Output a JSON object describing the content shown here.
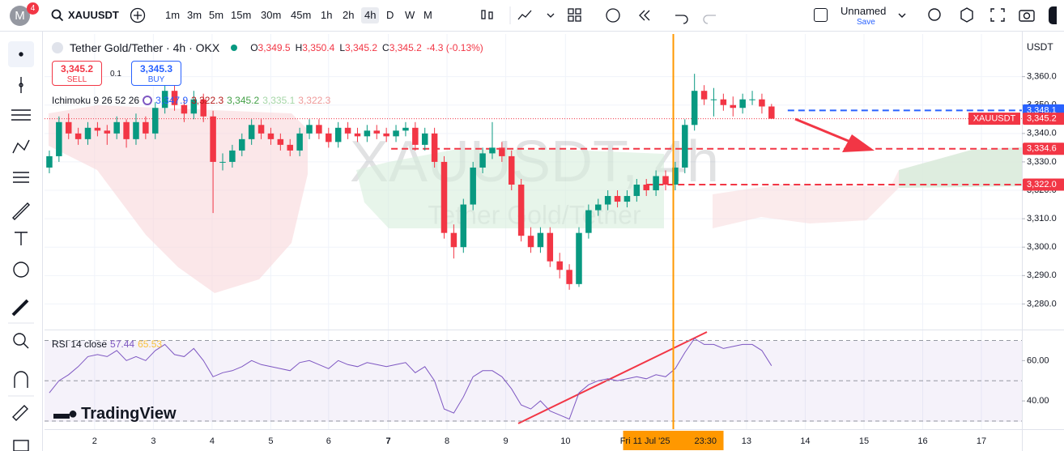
{
  "toolbar": {
    "avatar": "M",
    "badge": "4",
    "symbol": "XAUUSDT",
    "intervals": [
      "1m",
      "3m",
      "5m",
      "15m",
      "30m",
      "45m",
      "1h",
      "2h",
      "4h",
      "D",
      "W",
      "M"
    ],
    "active_interval": "4h",
    "layout_name": "Unnamed",
    "save": "Save"
  },
  "trade": {
    "sell_price": "3,345.2",
    "sell": "SELL",
    "quantity": "0.1",
    "buy_price": "3,345.3",
    "buy": "BUY"
  },
  "branding": "TradingView",
  "chart_data": {
    "type": "candlestick",
    "title": "Tether Gold/Tether · 4h · OKX",
    "ohlc_legend": [
      {
        "label": "O",
        "value": "3,349.5"
      },
      {
        "label": "H",
        "value": "3,350.4"
      },
      {
        "label": "L",
        "value": "3,345.2"
      },
      {
        "label": "C",
        "value": "3,345.2"
      }
    ],
    "change": "-4.3 (-0.13%)",
    "watermark": "XAUUSDT, 4h",
    "watermark_subtitle": "Tether Gold/Tether",
    "currency": "USDT",
    "up_color": "#089981",
    "down_color": "#f23645",
    "indicator": {
      "name": "Ichimoku 9 26 52 26",
      "values": [
        {
          "value": "3,347.9",
          "color": "#2962ff"
        },
        {
          "value": "3,322.3",
          "color": "#b71c1c"
        },
        {
          "value": "3,345.2",
          "color": "#43a047"
        },
        {
          "value": "3,335.1",
          "color": "#a5d6a7"
        },
        {
          "value": "3,322.3",
          "color": "#ef9a9a"
        }
      ]
    },
    "candles": [
      [
        3328,
        3334,
        3326,
        3332
      ],
      [
        3332,
        3346,
        3330,
        3344
      ],
      [
        3344,
        3347,
        3338,
        3340
      ],
      [
        3340,
        3342,
        3336,
        3338
      ],
      [
        3338,
        3344,
        3336,
        3342
      ],
      [
        3342,
        3344,
        3339,
        3341
      ],
      [
        3341,
        3343,
        3336,
        3340
      ],
      [
        3340,
        3346,
        3338,
        3344
      ],
      [
        3344,
        3345,
        3335,
        3338
      ],
      [
        3338,
        3347,
        3336,
        3344
      ],
      [
        3344,
        3346,
        3338,
        3340
      ],
      [
        3340,
        3351,
        3338,
        3349
      ],
      [
        3349,
        3360,
        3347,
        3355
      ],
      [
        3355,
        3357,
        3348,
        3350
      ],
      [
        3350,
        3352,
        3344,
        3347
      ],
      [
        3347,
        3355,
        3345,
        3352
      ],
      [
        3352,
        3354,
        3344,
        3346
      ],
      [
        3346,
        3348,
        3312,
        3330
      ],
      [
        3330,
        3333,
        3327,
        3330
      ],
      [
        3330,
        3336,
        3328,
        3334
      ],
      [
        3334,
        3340,
        3332,
        3338
      ],
      [
        3338,
        3345,
        3336,
        3343
      ],
      [
        3343,
        3345,
        3338,
        3340
      ],
      [
        3340,
        3342,
        3336,
        3338
      ],
      [
        3338,
        3340,
        3334,
        3336
      ],
      [
        3336,
        3338,
        3332,
        3334
      ],
      [
        3334,
        3342,
        3332,
        3340
      ],
      [
        3340,
        3345,
        3338,
        3343
      ],
      [
        3343,
        3345,
        3338,
        3340
      ],
      [
        3340,
        3342,
        3335,
        3337
      ],
      [
        3337,
        3344,
        3335,
        3342
      ],
      [
        3342,
        3344,
        3338,
        3340
      ],
      [
        3340,
        3342,
        3337,
        3339
      ],
      [
        3339,
        3343,
        3337,
        3341
      ],
      [
        3341,
        3343,
        3338,
        3340
      ],
      [
        3340,
        3342,
        3337,
        3339
      ],
      [
        3339,
        3343,
        3337,
        3341
      ],
      [
        3341,
        3344,
        3339,
        3342
      ],
      [
        3342,
        3344,
        3334,
        3336
      ],
      [
        3336,
        3342,
        3334,
        3340
      ],
      [
        3340,
        3342,
        3328,
        3330
      ],
      [
        3330,
        3332,
        3303,
        3305
      ],
      [
        3305,
        3308,
        3296,
        3300
      ],
      [
        3300,
        3317,
        3298,
        3315
      ],
      [
        3315,
        3330,
        3313,
        3328
      ],
      [
        3328,
        3335,
        3326,
        3333
      ],
      [
        3333,
        3344,
        3331,
        3335
      ],
      [
        3335,
        3337,
        3330,
        3332
      ],
      [
        3332,
        3334,
        3320,
        3322
      ],
      [
        3322,
        3324,
        3302,
        3304
      ],
      [
        3304,
        3307,
        3298,
        3300
      ],
      [
        3300,
        3307,
        3298,
        3305
      ],
      [
        3305,
        3307,
        3293,
        3295
      ],
      [
        3295,
        3298,
        3289,
        3292
      ],
      [
        3292,
        3294,
        3285,
        3287
      ],
      [
        3287,
        3307,
        3286,
        3305
      ],
      [
        3305,
        3315,
        3303,
        3313
      ],
      [
        3313,
        3317,
        3311,
        3315
      ],
      [
        3315,
        3320,
        3313,
        3318
      ],
      [
        3318,
        3320,
        3314,
        3316
      ],
      [
        3316,
        3320,
        3314,
        3318
      ],
      [
        3318,
        3324,
        3316,
        3322
      ],
      [
        3322,
        3324,
        3318,
        3320
      ],
      [
        3320,
        3327,
        3318,
        3325
      ],
      [
        3325,
        3327,
        3320,
        3322
      ],
      [
        3322,
        3330,
        3320,
        3328
      ],
      [
        3328,
        3345,
        3326,
        3343
      ],
      [
        3343,
        3361,
        3341,
        3355
      ],
      [
        3355,
        3357,
        3350,
        3352
      ],
      [
        3352,
        3356,
        3346,
        3352
      ],
      [
        3352,
        3354,
        3348,
        3350
      ],
      [
        3350,
        3353,
        3346,
        3349
      ],
      [
        3349,
        3354,
        3347,
        3352
      ],
      [
        3352,
        3355,
        3350,
        3352
      ],
      [
        3352,
        3354,
        3347,
        3349.5
      ],
      [
        3349.5,
        3350.4,
        3345.2,
        3345.2
      ]
    ],
    "xlim": [
      -0.5,
      101
    ],
    "xticks": [
      {
        "value": 4.7,
        "label": "2"
      },
      {
        "value": 10.8,
        "label": "3"
      },
      {
        "value": 16.9,
        "label": "4"
      },
      {
        "value": 23,
        "label": "5"
      },
      {
        "value": 29,
        "label": "6"
      },
      {
        "value": 35.2,
        "label": "7"
      },
      {
        "value": 41.3,
        "label": "8"
      },
      {
        "value": 47.4,
        "label": "9"
      },
      {
        "value": 53.6,
        "label": "10"
      },
      {
        "value": 72.4,
        "label": "13"
      },
      {
        "value": 78.5,
        "label": "14"
      },
      {
        "value": 84.6,
        "label": "15"
      },
      {
        "value": 90.7,
        "label": "16"
      },
      {
        "value": 96.8,
        "label": "17"
      }
    ],
    "crosshair": {
      "value": 64.8,
      "label": "Fri 11 Jul '25",
      "time": "23:30",
      "color": "#ff9800"
    },
    "ylim": [
      3271,
      3375
    ],
    "yticks": [
      {
        "value": 3280,
        "label": "3,280.0"
      },
      {
        "value": 3290,
        "label": "3,290.0"
      },
      {
        "value": 3300,
        "label": "3,300.0"
      },
      {
        "value": 3310,
        "label": "3,310.0"
      },
      {
        "value": 3320,
        "label": "3,320.0"
      },
      {
        "value": 3330,
        "label": "3,330.0"
      },
      {
        "value": 3340,
        "label": "3,340.0"
      },
      {
        "value": 3350,
        "label": "3,350.0"
      },
      {
        "value": 3360,
        "label": "3,360.0"
      }
    ],
    "levels": [
      {
        "value": 3348.1,
        "label": "3,348.1",
        "color": "#2962ff"
      },
      {
        "value": 3345.2,
        "label": "3,345.2",
        "color": "#f23645",
        "tag": "XAUUSDT"
      },
      {
        "value": 3334.6,
        "label": "3,334.6",
        "color": "#f23645"
      },
      {
        "value": 3322.0,
        "label": "3,322.0",
        "color": "#f23645"
      }
    ],
    "grid": true,
    "rsi": {
      "title": "RSI 14 close",
      "value": "57.44",
      "ma_value": "65.53",
      "color": "#7e57c2",
      "ma_color": "#f9c23c",
      "values": [
        44,
        50,
        53,
        57,
        62,
        63,
        62,
        65,
        60,
        62,
        60,
        65,
        68,
        63,
        62,
        66,
        60,
        52,
        54,
        55,
        57,
        60,
        58,
        57,
        56,
        55,
        59,
        60,
        58,
        56,
        60,
        58,
        57,
        59,
        58,
        57,
        58,
        59,
        54,
        57,
        50,
        36,
        34,
        42,
        52,
        55,
        55,
        52,
        46,
        38,
        36,
        40,
        35,
        33,
        31,
        44,
        48,
        50,
        51,
        50,
        51,
        52,
        51,
        53,
        52,
        56,
        64,
        71,
        68,
        68,
        66,
        67,
        68,
        68,
        65,
        57.44
      ],
      "ylim": [
        26,
        75
      ],
      "yticks": [
        {
          "value": 40,
          "label": "40.00"
        },
        {
          "value": 60,
          "label": "60.00"
        }
      ],
      "bands": [
        30,
        50,
        70
      ]
    }
  }
}
